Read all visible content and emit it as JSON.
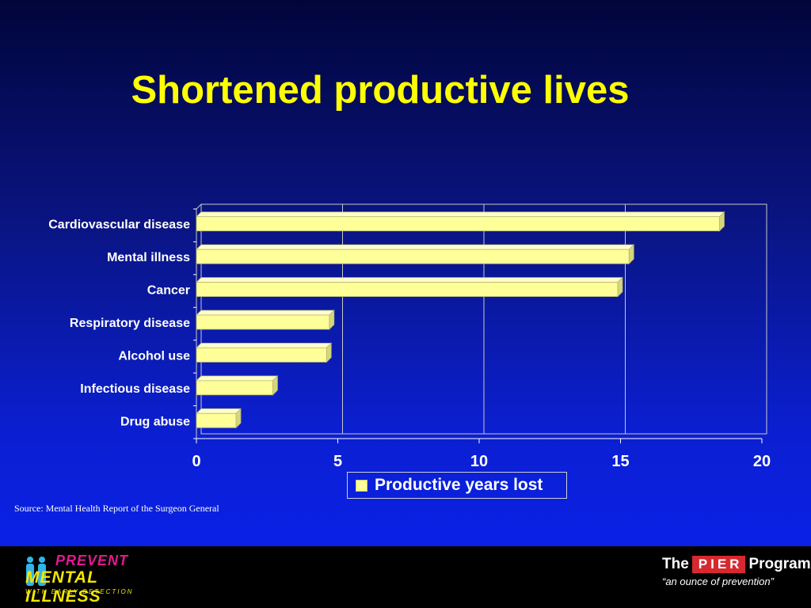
{
  "slide": {
    "title": "Shortened productive lives",
    "source": "Source: Mental Health Report of the Surgeon General"
  },
  "chart_data": {
    "type": "bar",
    "orientation": "horizontal",
    "categories": [
      "Cardiovascular disease",
      "Mental illness",
      "Cancer",
      "Respiratory disease",
      "Alcohol use",
      "Infectious disease",
      "Drug abuse"
    ],
    "series": [
      {
        "name": "Productive years lost",
        "values": [
          18.5,
          15.3,
          14.9,
          4.7,
          4.6,
          2.7,
          1.4
        ]
      }
    ],
    "xlim": [
      0,
      20
    ],
    "xticks": [
      0,
      5,
      10,
      15,
      20
    ],
    "grid": true,
    "legend": "bottom-center",
    "colors": {
      "bar": "#ffff99",
      "bar_edge": "#b8b870",
      "grid": "#c8c8c8"
    }
  },
  "footer": {
    "left_logo": {
      "line1": "PREVENT",
      "line2": "MENTAL ILLNESS",
      "line3": "WITH EARLY DETECTION"
    },
    "right_logo": {
      "the": "The",
      "pier": "PIER",
      "program": "Program",
      "tagline": "“an ounce of prevention”"
    }
  }
}
